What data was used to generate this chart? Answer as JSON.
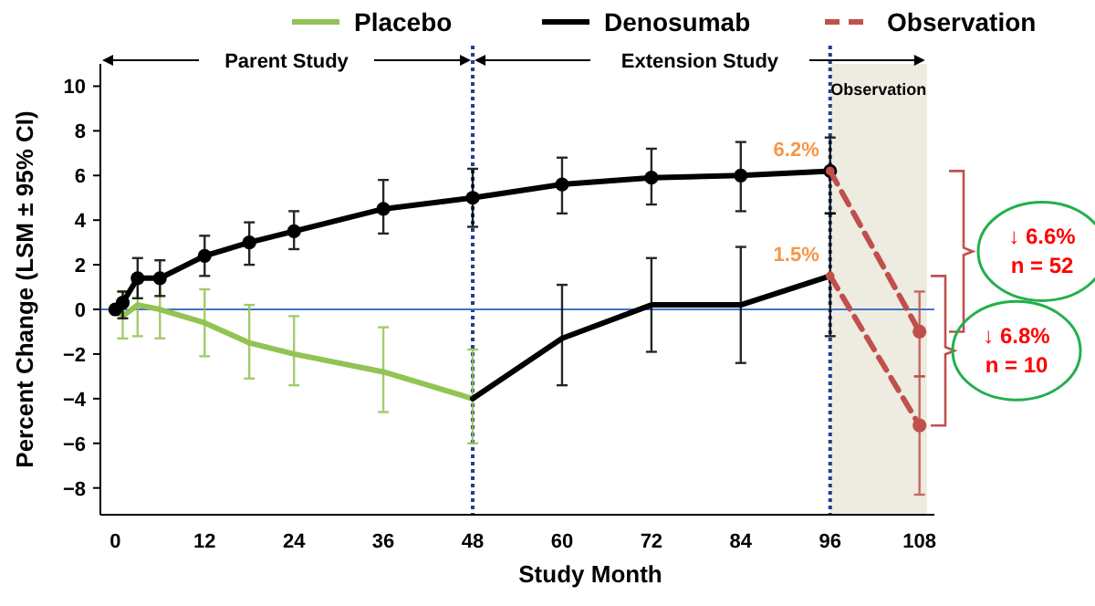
{
  "chart_data": {
    "type": "line",
    "xlabel": "Study Month",
    "ylabel": "Percent Change (LSM ± 95% CI)",
    "xlim": [
      -2,
      110
    ],
    "ylim": [
      -9.2,
      11
    ],
    "xticks": [
      0,
      12,
      24,
      36,
      48,
      60,
      72,
      84,
      96,
      108
    ],
    "yticks": [
      {
        "value": -8,
        "label": "−8"
      },
      {
        "value": -6,
        "label": "−6"
      },
      {
        "value": -4,
        "label": "−4"
      },
      {
        "value": -2,
        "label": "−2"
      },
      0,
      2,
      4,
      6,
      8,
      10
    ],
    "grid": false,
    "legend": "top",
    "series": [
      {
        "name": "Placebo",
        "color": "#92c353",
        "marker": "none",
        "line_style": "solid",
        "x": [
          0,
          1,
          3,
          6,
          12,
          18,
          24,
          36,
          48
        ],
        "values": [
          0,
          -0.3,
          0.2,
          0,
          -0.6,
          -1.5,
          -2.0,
          -2.8,
          -4.0
        ],
        "errors": [
          null,
          [
            -1.3,
            0.8
          ],
          [
            -1.2,
            1.4
          ],
          [
            -1.3,
            1.4
          ],
          [
            -2.1,
            0.9
          ],
          [
            -3.1,
            0.2
          ],
          [
            -3.4,
            -0.3
          ],
          [
            -4.6,
            -0.8
          ],
          [
            -6.0,
            -1.8
          ]
        ]
      },
      {
        "name": "Denosumab",
        "color": "#000000",
        "marker": "circle",
        "line_style": "solid",
        "x": [
          0,
          1,
          3,
          6,
          12,
          18,
          24,
          36,
          48,
          60,
          72,
          84,
          96
        ],
        "values": [
          0,
          0.3,
          1.4,
          1.4,
          2.4,
          3.0,
          3.5,
          4.5,
          5.0,
          5.6,
          5.9,
          6.0,
          6.2
        ],
        "errors": [
          null,
          [
            -0.4,
            0.8
          ],
          [
            0.5,
            2.3
          ],
          [
            0.6,
            2.2
          ],
          [
            1.5,
            3.3
          ],
          [
            2.0,
            3.9
          ],
          [
            2.7,
            4.4
          ],
          [
            3.4,
            5.8
          ],
          [
            3.7,
            6.3
          ],
          [
            4.3,
            6.8
          ],
          [
            4.7,
            7.2
          ],
          [
            4.4,
            7.5
          ],
          [
            4.3,
            7.7
          ]
        ]
      },
      {
        "color": "#000000",
        "marker": "none",
        "line_style": "solid",
        "x": [
          48,
          60,
          72,
          84,
          96
        ],
        "values": [
          -4.0,
          -1.3,
          0.2,
          0.2,
          1.5
        ],
        "errors": [
          null,
          [
            -3.4,
            1.1
          ],
          [
            -1.9,
            2.3
          ],
          [
            -2.4,
            2.8
          ],
          [
            -1.2,
            4.3
          ]
        ]
      },
      {
        "name": "Observation",
        "color": "#c0504d",
        "marker": "circle",
        "line_style": "dashed",
        "x": [
          96,
          108
        ],
        "values": [
          6.2,
          -1.0
        ],
        "errors": [
          null,
          [
            -3.0,
            0.8
          ]
        ]
      },
      {
        "color": "#c0504d",
        "marker": "circle",
        "line_style": "dashed",
        "x": [
          96,
          108
        ],
        "values": [
          1.5,
          -5.2
        ],
        "errors": [
          null,
          [
            -8.3,
            -3.0
          ]
        ]
      }
    ],
    "ref_lines": [
      {
        "axis": "x",
        "value": 48,
        "color": "#1f3f8f",
        "line_style": "dotted"
      },
      {
        "axis": "x",
        "value": 96,
        "color": "#1f3f8f",
        "line_style": "dotted"
      },
      {
        "axis": "y",
        "value": 0,
        "color": "#4472c4",
        "line_style": "solid"
      }
    ],
    "bands": [
      {
        "axis": "x",
        "from": 96,
        "to": 109,
        "label": "Observation",
        "color": "#eeebe0"
      }
    ],
    "annotations": [
      "Parent Study",
      "Extension Study",
      {
        "text": "6.2%",
        "x": 96,
        "y": 6.2
      },
      {
        "text": "1.5%",
        "x": 96,
        "y": 1.5
      },
      "↓ 6.6%\nn = 52",
      "↓ 6.8%\nn = 10"
    ]
  }
}
